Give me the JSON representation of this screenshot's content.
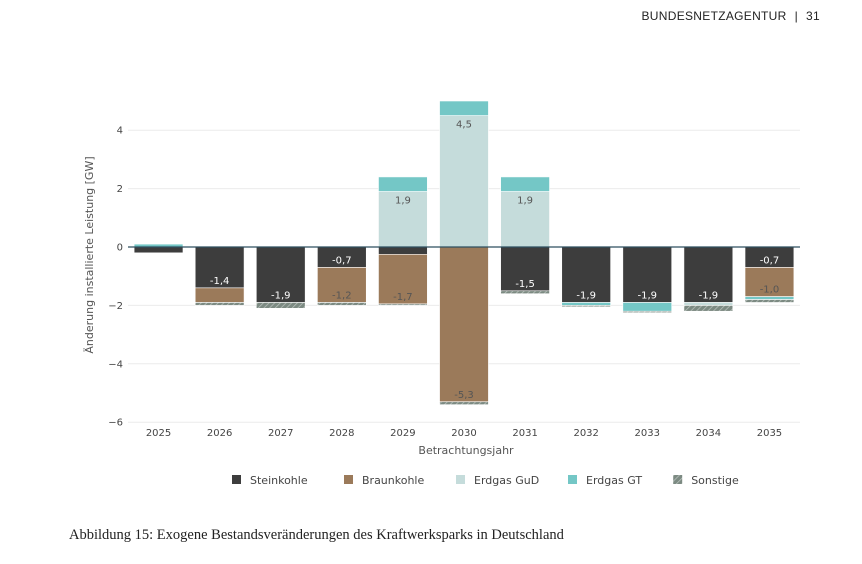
{
  "header": {
    "org": "BUNDESNETZAGENTUR",
    "separator": "|",
    "page": "31"
  },
  "caption": "Abbildung 15: Exogene Bestandsveränderungen des Kraftwerksparks in Deutschland",
  "chart_data": {
    "type": "bar",
    "stacked": true,
    "title": "",
    "xlabel": "Betrachtungsjahr",
    "ylabel": "Änderung installierte Leistung [GW]",
    "ylim": [
      -6,
      5
    ],
    "yticks": [
      -6,
      -4,
      -2,
      0,
      2,
      4
    ],
    "grid": true,
    "legend_position": "bottom",
    "categories": [
      "2025",
      "2026",
      "2027",
      "2028",
      "2029",
      "2030",
      "2031",
      "2032",
      "2033",
      "2034",
      "2035"
    ],
    "series": [
      {
        "name": "Steinkohle",
        "color": "#3d3d3d",
        "values": [
          -0.2,
          -1.4,
          -1.9,
          -0.7,
          -0.25,
          0,
          -1.5,
          -1.9,
          -1.9,
          -1.9,
          -0.7
        ],
        "labels": [
          "",
          "-1,4",
          "-1,9",
          "-0,7",
          "",
          "",
          "-1,5",
          "-1,9",
          "-1,9",
          "-1,9",
          "-0,7"
        ]
      },
      {
        "name": "Braunkohle",
        "color": "#9b7a5a",
        "values": [
          0,
          -0.5,
          0,
          -1.2,
          -1.7,
          -5.3,
          0,
          0,
          0,
          0,
          -1.0
        ],
        "labels": [
          "",
          "",
          "",
          "-1,2",
          "-1,7",
          "-5,3",
          "",
          "",
          "",
          "",
          "-1,0"
        ]
      },
      {
        "name": "Erdgas GuD",
        "color": "#c5dcdb",
        "values": [
          0,
          0,
          0,
          0,
          1.9,
          4.5,
          1.9,
          0,
          0,
          -0.1,
          0
        ],
        "labels": [
          "",
          "",
          "",
          "",
          "1,9",
          "4,5",
          "1,9",
          "",
          "",
          "",
          ""
        ]
      },
      {
        "name": "Erdgas GT",
        "color": "#74c7c6",
        "values": [
          0.1,
          0,
          0,
          0,
          0.5,
          0.5,
          0.5,
          -0.1,
          -0.3,
          0,
          -0.1
        ],
        "labels": [
          "",
          "",
          "",
          "",
          "",
          "",
          "",
          "",
          "",
          "",
          ""
        ]
      },
      {
        "name": "Sonstige",
        "color": "#7c8a82",
        "values": [
          0,
          -0.1,
          -0.2,
          -0.1,
          -0.05,
          -0.1,
          -0.1,
          -0.05,
          -0.05,
          -0.2,
          -0.1
        ],
        "labels": [
          "",
          "",
          "",
          "",
          "",
          "",
          "",
          "",
          "",
          "",
          ""
        ]
      }
    ]
  }
}
